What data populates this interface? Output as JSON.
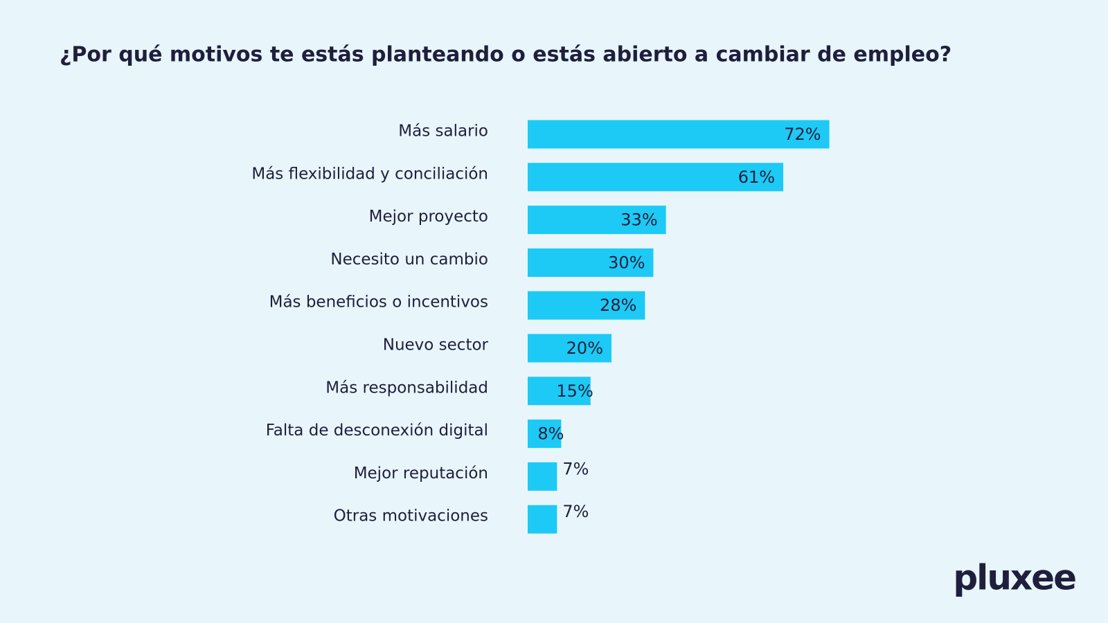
{
  "chart_data": {
    "type": "bar",
    "orientation": "horizontal",
    "title": "¿Por qué motivos te estás planteando o estás abierto a cambiar de empleo?",
    "categories": [
      "Más salario",
      "Más flexibilidad y conciliación",
      "Mejor proyecto",
      "Necesito un cambio",
      "Más beneficios o incentivos",
      "Nuevo sector",
      "Más responsabilidad",
      "Falta de desconexión digital",
      "Mejor reputación",
      "Otras motivaciones"
    ],
    "values": [
      72,
      61,
      33,
      30,
      28,
      20,
      15,
      8,
      7,
      7
    ],
    "value_labels": [
      "72%",
      "61%",
      "33%",
      "30%",
      "28%",
      "20%",
      "15%",
      "8%",
      "7%",
      "7%"
    ],
    "color": "#1ccaf5"
  },
  "logo": "pluxee"
}
